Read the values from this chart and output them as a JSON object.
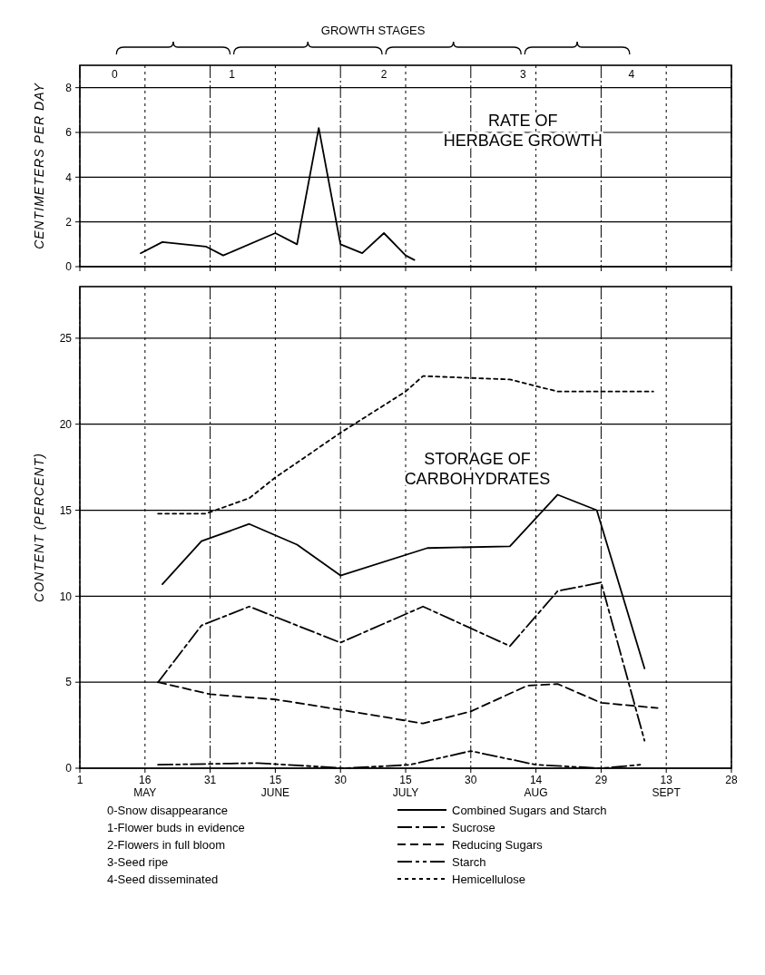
{
  "chart_data": [
    {
      "type": "line",
      "title": "RATE OF HERBAGE GROWTH",
      "ylabel": "CENTIMETERS PER DAY",
      "x2label": "GROWTH STAGES",
      "xlim": [
        "--05-01",
        "--09-28"
      ],
      "xticks": [
        {
          "value": "--05-01",
          "label": null
        },
        {
          "value": "--05-16",
          "label": null
        },
        {
          "value": "--05-31",
          "label": null
        },
        {
          "value": "--06-15",
          "label": null
        },
        {
          "value": "--06-30",
          "label": null
        },
        {
          "value": "--07-15",
          "label": null
        },
        {
          "value": "--07-30",
          "label": null
        },
        {
          "value": "--08-14",
          "label": null
        },
        {
          "value": "--08-29",
          "label": null
        },
        {
          "value": "--09-13",
          "label": null
        },
        {
          "value": "--09-28",
          "label": null
        }
      ],
      "x2lim": [
        "--05-01",
        "--09-28"
      ],
      "x2ticks": [
        {
          "value": "--05-09",
          "label": "0"
        },
        {
          "value": "--06-05",
          "label": "1"
        },
        {
          "value": "--07-10",
          "label": "2"
        },
        {
          "value": "--08-11",
          "label": "3"
        },
        {
          "value": "--09-05",
          "label": "4"
        }
      ],
      "ylim": [
        0,
        9
      ],
      "yticks": [
        0,
        2,
        4,
        6,
        8
      ],
      "grid": true,
      "tick_labels": "y",
      "series": [
        {
          "color": "#000000",
          "line_style": "solid",
          "x": [
            "--05-15",
            "--05-20",
            "--05-30",
            "--06-03",
            "--06-15",
            "--06-20",
            "--06-25",
            "--06-30",
            "--07-05",
            "--07-10",
            "--07-15",
            "--07-17"
          ],
          "values": [
            0.6,
            1.1,
            0.9,
            0.5,
            1.5,
            1.0,
            6.2,
            1.0,
            0.6,
            1.5,
            0.5,
            0.3
          ]
        }
      ]
    },
    {
      "type": "line",
      "title": "STORAGE OF CARBOHYDRATES",
      "ylabel": "CONTENT (PERCENT)",
      "xlim": [
        "--05-01",
        "--09-28"
      ],
      "xticks": [
        {
          "value": "--05-01",
          "label": "1"
        },
        {
          "value": "--05-16",
          "label": "16\nMAY"
        },
        {
          "value": "--05-31",
          "label": "31"
        },
        {
          "value": "--06-15",
          "label": "15\nJUNE"
        },
        {
          "value": "--06-30",
          "label": "30"
        },
        {
          "value": "--07-15",
          "label": "15\nJULY"
        },
        {
          "value": "--07-30",
          "label": "30"
        },
        {
          "value": "--08-14",
          "label": "14\nAUG"
        },
        {
          "value": "--08-29",
          "label": "29"
        },
        {
          "value": "--09-13",
          "label": "13\nSEPT"
        },
        {
          "value": "--09-28",
          "label": "28"
        }
      ],
      "ylim": [
        0,
        28
      ],
      "yticks": [
        0,
        5,
        10,
        15,
        20,
        25
      ],
      "grid": true,
      "legend": "bottom",
      "annotations": [
        "0-Snow disappearance",
        "1-Flower buds in evidence",
        "2-Flowers in full bloom",
        "3-Seed ripe",
        "4-Seed disseminated"
      ],
      "series": [
        {
          "name": "Combined Sugars and Starch",
          "color": "#000000",
          "line_style": "solid",
          "x": [
            "--05-20",
            "--05-29",
            "--06-09",
            "--06-20",
            "--06-30",
            "--07-20",
            "--08-08",
            "--08-19",
            "--08-28",
            "--09-08"
          ],
          "values": [
            10.7,
            13.2,
            14.2,
            13.0,
            11.2,
            12.8,
            12.9,
            15.9,
            15.0,
            5.8
          ]
        },
        {
          "name": "Sucrose",
          "color": "#000000",
          "line_style": "dashdot",
          "x": [
            "--05-19",
            "--05-29",
            "--06-09",
            "--06-30",
            "--07-19",
            "--08-08",
            "--08-19",
            "--08-29",
            "--09-08"
          ],
          "values": [
            5.0,
            8.3,
            9.4,
            7.3,
            9.4,
            7.1,
            10.3,
            10.8,
            1.6
          ]
        },
        {
          "name": "Reducing Sugars",
          "color": "#000000",
          "line_style": "dashed",
          "x": [
            "--05-19",
            "--05-31",
            "--06-15",
            "--06-30",
            "--07-19",
            "--07-30",
            "--08-12",
            "--08-19",
            "--08-29",
            "--09-11"
          ],
          "values": [
            5.0,
            4.3,
            4.0,
            3.4,
            2.6,
            3.3,
            4.8,
            4.9,
            3.8,
            3.5
          ]
        },
        {
          "name": "Starch",
          "color": "#000000",
          "line_style": "dashdotdot",
          "x": [
            "--05-19",
            "--06-11",
            "--07-01",
            "--07-16",
            "--07-30",
            "--08-14",
            "--08-29",
            "--09-07"
          ],
          "values": [
            0.2,
            0.3,
            0.0,
            0.2,
            1.0,
            0.2,
            0.0,
            0.2
          ]
        },
        {
          "name": "Hemicellulose",
          "color": "#000000",
          "line_style": "dotted",
          "x": [
            "--05-19",
            "--05-30",
            "--06-09",
            "--06-15",
            "--06-30",
            "--07-15",
            "--07-19",
            "--08-08",
            "--08-19",
            "--09-10"
          ],
          "values": [
            14.8,
            14.8,
            15.7,
            16.9,
            19.5,
            21.9,
            22.8,
            22.6,
            21.9,
            21.9
          ]
        }
      ]
    }
  ]
}
